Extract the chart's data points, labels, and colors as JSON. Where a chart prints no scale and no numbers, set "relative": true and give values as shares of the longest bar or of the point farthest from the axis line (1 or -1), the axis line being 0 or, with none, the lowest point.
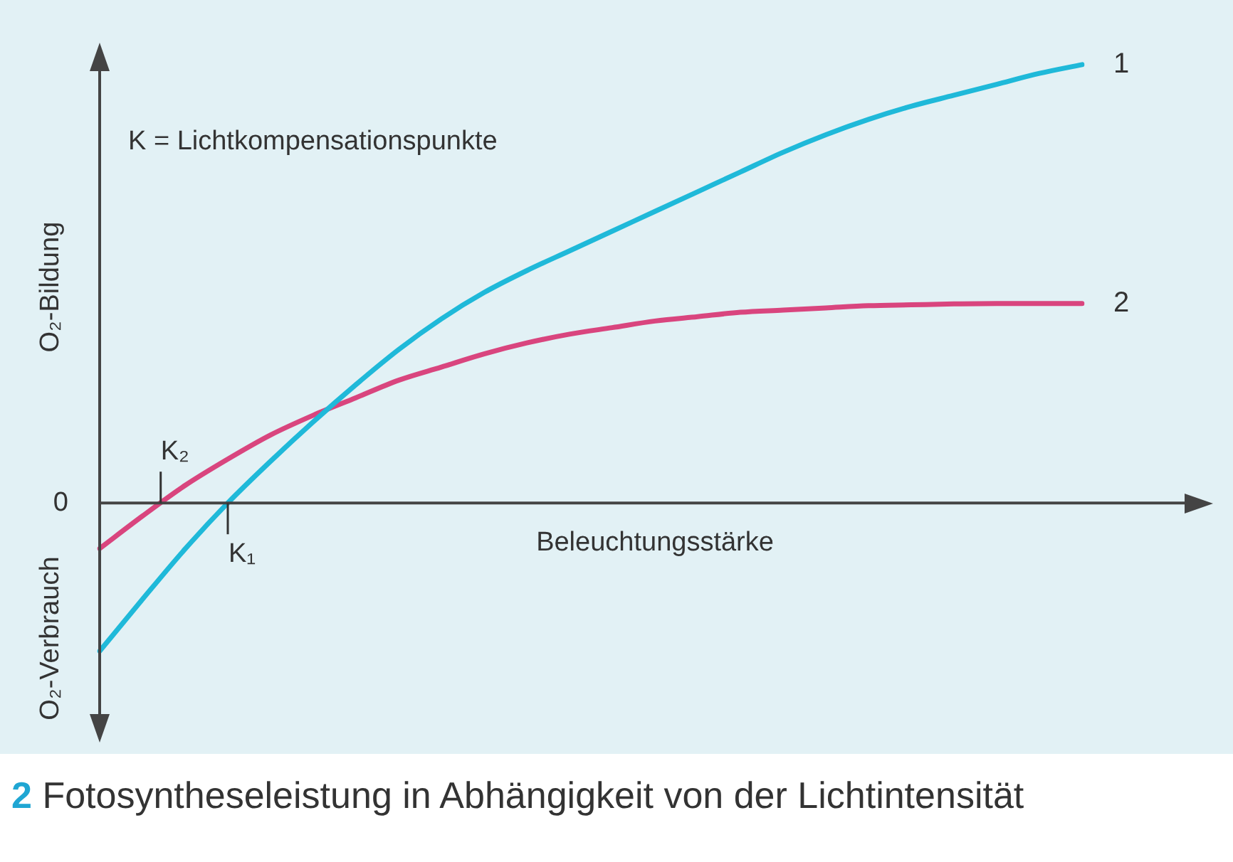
{
  "chart_data": {
    "type": "line",
    "relative": true,
    "xlabel": "Beleuchtungsstärke",
    "ylabel": "O₂-Bildung",
    "categories": [
      null,
      null,
      null,
      null,
      null,
      null,
      null,
      null,
      null,
      null,
      null,
      null,
      null,
      null,
      null,
      null,
      null,
      null,
      null,
      null,
      null,
      null,
      null,
      null
    ],
    "series": [
      {
        "name": "1",
        "color": "#1fb9d9",
        "values": [
          -0.338,
          -0.22,
          -0.105,
          0,
          0.095,
          0.185,
          0.27,
          0.35,
          0.42,
          0.48,
          0.53,
          0.575,
          0.62,
          0.665,
          0.71,
          0.755,
          0.8,
          0.84,
          0.875,
          0.905,
          0.93,
          0.955,
          0.98,
          1.0
        ]
      },
      {
        "name": "2",
        "color": "#d9457e",
        "values": [
          -0.104,
          -0.03,
          0.04,
          0.1,
          0.155,
          0.2,
          0.24,
          0.28,
          0.31,
          0.34,
          0.365,
          0.385,
          0.4,
          0.415,
          0.425,
          0.435,
          0.44,
          0.445,
          0.45,
          0.452,
          0.454,
          0.455,
          0.455,
          0.455
        ]
      }
    ],
    "annotations": [
      "K = Lichtkompensationspunkte",
      "K₂",
      "K₁",
      "O₂-Verbrauch",
      "0",
      "2 Fotosyntheseleistung in Abhängigkeit von der Lichtintensität"
    ],
    "grid": false,
    "legend": false,
    "marker": "none",
    "line_style": "solid"
  }
}
